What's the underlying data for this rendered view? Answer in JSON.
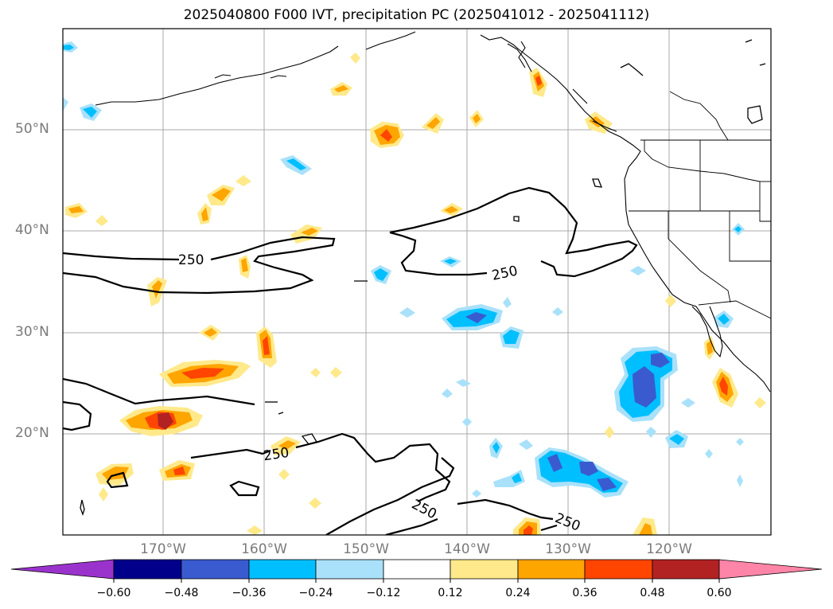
{
  "title": "2025040800 F000 IVT, precipitation PC (2025041012 - 2025041112)",
  "map": {
    "lat_labels": [
      "50°N",
      "40°N",
      "30°N",
      "20°N"
    ],
    "lon_labels": [
      "170°W",
      "160°W",
      "150°W",
      "140°W",
      "130°W",
      "120°W"
    ],
    "contour_label": "250",
    "contour_level_ivt": 250,
    "gridlines": true,
    "features": [
      "coastlines",
      "state-borders",
      "IVT 250 contour",
      "precipitation PC shading"
    ]
  },
  "colorbar": {
    "extend": "both",
    "ticks": [
      "−0.60",
      "−0.48",
      "−0.36",
      "−0.24",
      "−0.12",
      "0.12",
      "0.24",
      "0.36",
      "0.48",
      "0.60"
    ],
    "bins": [
      {
        "range": "< -0.60",
        "color": "#9a33cc"
      },
      {
        "range": "-0.60 to -0.48",
        "color": "#00008b"
      },
      {
        "range": "-0.48 to -0.36",
        "color": "#3a5bd0"
      },
      {
        "range": "-0.36 to -0.24",
        "color": "#00bfff"
      },
      {
        "range": "-0.24 to -0.12",
        "color": "#a9e1fa"
      },
      {
        "range": "-0.12 to 0.12",
        "color": "#ffffff"
      },
      {
        "range": "0.12 to 0.24",
        "color": "#ffe98a"
      },
      {
        "range": "0.24 to 0.36",
        "color": "#ffa500"
      },
      {
        "range": "0.36 to 0.48",
        "color": "#ff4500"
      },
      {
        "range": "0.48 to 0.60",
        "color": "#b22222"
      },
      {
        "range": "> 0.60",
        "color": "#ff85a8"
      }
    ]
  }
}
